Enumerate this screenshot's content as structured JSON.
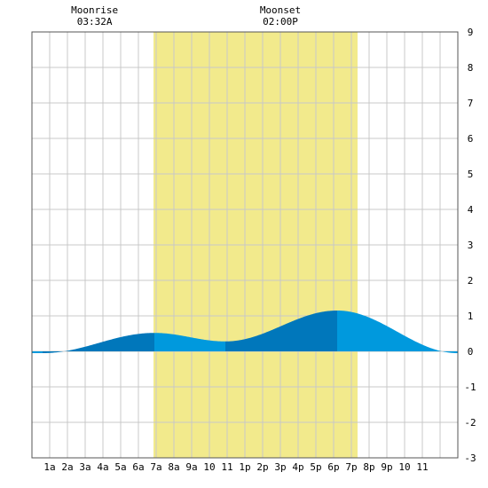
{
  "chart_data": {
    "type": "area",
    "title": "",
    "xlabel": "",
    "ylabel": "",
    "x_tick_labels": [
      "1a",
      "2a",
      "3a",
      "4a",
      "5a",
      "6a",
      "7a",
      "8a",
      "9a",
      "10",
      "11",
      "1p",
      "2p",
      "3p",
      "4p",
      "5p",
      "6p",
      "7p",
      "8p",
      "9p",
      "10",
      "11"
    ],
    "y_tick_labels": [
      "9",
      "8",
      "7",
      "6",
      "5",
      "4",
      "3",
      "2",
      "1",
      "0",
      "-1",
      "-2",
      "-3"
    ],
    "xlim": [
      0,
      24
    ],
    "ylim": [
      -3,
      9
    ],
    "grid": true,
    "daylight": {
      "start_hour": 6.85,
      "end_hour": 18.35,
      "color": "#f2ea8c"
    },
    "moon_events": [
      {
        "label": "Moonrise",
        "time": "03:32A",
        "hour": 3.53
      },
      {
        "label": "Moonset",
        "time": "02:00P",
        "hour": 14.0
      }
    ],
    "tide_extremes": [
      {
        "hour": 0.6,
        "height": -0.05
      },
      {
        "hour": 6.9,
        "height": 0.52
      },
      {
        "hour": 10.9,
        "height": 0.28
      },
      {
        "hour": 17.2,
        "height": 1.15
      },
      {
        "hour": 24.0,
        "height": -0.05
      }
    ],
    "colors": {
      "fill_light": "#0099dd",
      "fill_dark": "#0077bb"
    }
  }
}
